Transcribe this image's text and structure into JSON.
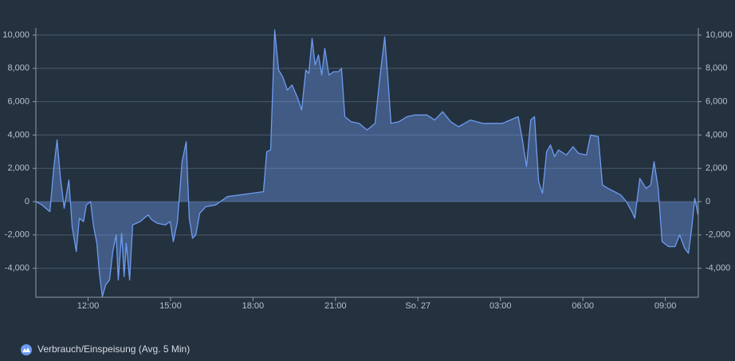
{
  "chart_data": {
    "type": "area",
    "xlim": [
      10.1,
      34.2
    ],
    "xticks": [
      {
        "value": 12,
        "label": "12:00"
      },
      {
        "value": 15,
        "label": "15:00"
      },
      {
        "value": 18,
        "label": "18:00"
      },
      {
        "value": 21,
        "label": "21:00"
      },
      {
        "value": 24,
        "label": "So. 27"
      },
      {
        "value": 27,
        "label": "03:00"
      },
      {
        "value": 30,
        "label": "06:00"
      },
      {
        "value": 33,
        "label": "09:00"
      }
    ],
    "ylim": [
      -5740,
      10430
    ],
    "yticks": [
      {
        "value": -4000,
        "label": "-4,000"
      },
      {
        "value": -2000,
        "label": "-2,000"
      },
      0,
      {
        "value": 2000,
        "label": "2,000"
      },
      {
        "value": 4000,
        "label": "4,000"
      },
      {
        "value": 6000,
        "label": "6,000"
      },
      {
        "value": 8000,
        "label": "8,000"
      },
      {
        "value": 10000,
        "label": "10,000"
      }
    ],
    "y2lim": [
      -5740,
      10430
    ],
    "y2ticks": [
      {
        "value": -4000,
        "label": "-4,000"
      },
      {
        "value": -2000,
        "label": "-2,000"
      },
      0,
      {
        "value": 2000,
        "label": "2,000"
      },
      {
        "value": 4000,
        "label": "4,000"
      },
      {
        "value": 6000,
        "label": "6,000"
      },
      {
        "value": 8000,
        "label": "8,000"
      },
      {
        "value": 10000,
        "label": "10,000"
      }
    ],
    "grid": true,
    "legend": "bottom-left",
    "x": [
      10.11,
      10.32,
      10.61,
      10.75,
      10.87,
      10.99,
      11.13,
      11.3,
      11.42,
      11.57,
      11.68,
      11.83,
      11.94,
      12.09,
      12.2,
      12.32,
      12.41,
      12.52,
      12.64,
      12.78,
      12.9,
      13.02,
      13.1,
      13.22,
      13.31,
      13.39,
      13.51,
      13.62,
      13.89,
      14.18,
      14.32,
      14.52,
      14.81,
      14.99,
      15.1,
      15.25,
      15.42,
      15.57,
      15.68,
      15.8,
      15.92,
      16.06,
      16.29,
      16.64,
      17.07,
      17.51,
      17.94,
      18.38,
      18.5,
      18.64,
      18.79,
      18.93,
      19.08,
      19.25,
      19.42,
      19.63,
      19.77,
      19.92,
      20.03,
      20.15,
      20.26,
      20.38,
      20.5,
      20.61,
      20.76,
      20.93,
      21.11,
      21.22,
      21.34,
      21.57,
      21.86,
      22.15,
      22.44,
      22.61,
      22.79,
      22.9,
      23.02,
      23.31,
      23.6,
      23.89,
      24.33,
      24.61,
      24.9,
      25.19,
      25.48,
      25.91,
      26.35,
      26.78,
      27.07,
      27.36,
      27.65,
      27.81,
      27.95,
      28.1,
      28.24,
      28.39,
      28.53,
      28.68,
      28.82,
      28.97,
      29.11,
      29.4,
      29.64,
      29.84,
      30.13,
      30.28,
      30.56,
      30.71,
      30.91,
      31.15,
      31.38,
      31.58,
      31.78,
      31.89,
      32.07,
      32.3,
      32.47,
      32.59,
      32.74,
      32.88,
      33.12,
      33.35,
      33.52,
      33.7,
      33.84,
      33.96,
      34.07,
      34.19
    ],
    "series": [
      {
        "name": "Verbrauch/Einspeisung (Avg. 5 Min)",
        "color": "#6d9cf0",
        "values": [
          0,
          -200,
          -600,
          2000,
          3700,
          1500,
          -400,
          1300,
          -1500,
          -3000,
          -1000,
          -1200,
          -200,
          0,
          -1500,
          -2500,
          -4300,
          -5700,
          -5000,
          -4700,
          -3000,
          -2000,
          -4700,
          -1900,
          -4500,
          -2500,
          -4700,
          -1400,
          -1200,
          -800,
          -1100,
          -1300,
          -1400,
          -1200,
          -2400,
          -1200,
          2400,
          3600,
          -1000,
          -2200,
          -2000,
          -700,
          -300,
          -200,
          300,
          400,
          500,
          600,
          3000,
          3100,
          10300,
          7900,
          7500,
          6700,
          7000,
          6200,
          5500,
          7900,
          7700,
          9800,
          8200,
          8800,
          7600,
          9200,
          7600,
          7800,
          7800,
          8000,
          5100,
          4800,
          4700,
          4300,
          4700,
          7400,
          9900,
          7500,
          4700,
          4800,
          5100,
          5200,
          5200,
          4900,
          5400,
          4800,
          4500,
          4900,
          4700,
          4700,
          4700,
          4900,
          5100,
          3600,
          2100,
          4900,
          5100,
          1200,
          500,
          3000,
          3400,
          2700,
          3100,
          2800,
          3300,
          2900,
          2800,
          4000,
          3900,
          1000,
          800,
          600,
          400,
          0,
          -600,
          -1000,
          1400,
          800,
          1000,
          2400,
          800,
          -2400,
          -2700,
          -2700,
          -2000,
          -2800,
          -3100,
          -1600,
          200,
          -800
        ]
      }
    ]
  }
}
